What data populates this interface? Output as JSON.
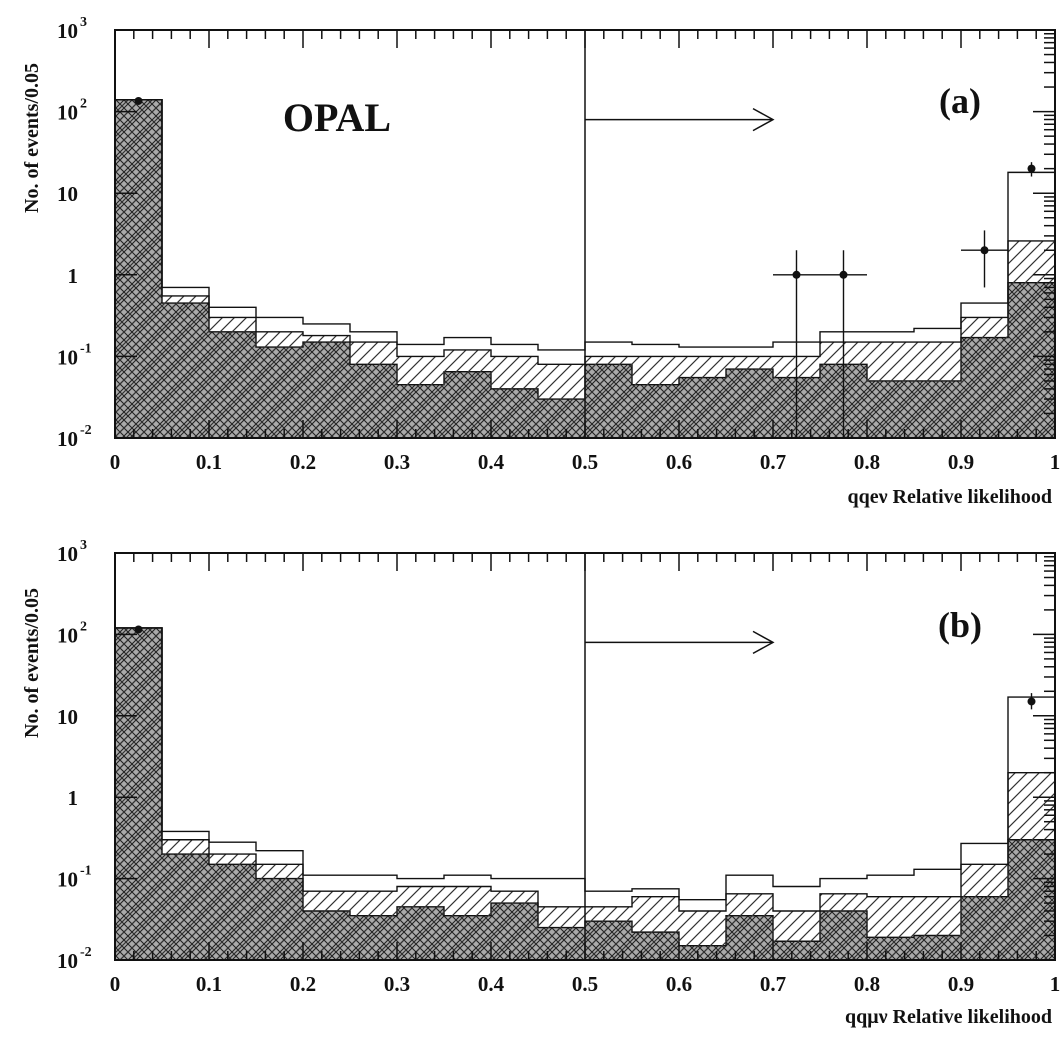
{
  "chart_data": [
    {
      "type": "histogram",
      "panel_label": "(a)",
      "experiment_label": "OPAL",
      "xlabel": "qqeν Relative likelihood",
      "ylabel": "No. of events/0.05",
      "xlim": [
        0,
        1
      ],
      "ylim": [
        0.01,
        1000
      ],
      "yscale": "log",
      "x_ticks": [
        "0",
        "0.1",
        "0.2",
        "0.3",
        "0.4",
        "0.5",
        "0.6",
        "0.7",
        "0.8",
        "0.9",
        "1"
      ],
      "y_ticks": [
        {
          "value": 0.01,
          "base": "10",
          "exp": "-2"
        },
        {
          "value": 0.1,
          "base": "10",
          "exp": "-1"
        },
        {
          "value": 1,
          "base": "1",
          "exp": ""
        },
        {
          "value": 10,
          "base": "10",
          "exp": ""
        },
        {
          "value": 100,
          "base": "10",
          "exp": "2"
        },
        {
          "value": 1000,
          "base": "10",
          "exp": "3"
        }
      ],
      "cut": {
        "x": 0.5,
        "arrow_to": 0.7,
        "arrow_y": 100
      },
      "bin_width": 0.05,
      "bin_edges_start": 0,
      "total": [
        140,
        0.7,
        0.4,
        0.3,
        0.25,
        0.2,
        0.14,
        0.17,
        0.14,
        0.12,
        0.15,
        0.14,
        0.13,
        0.13,
        0.15,
        0.2,
        0.2,
        0.22,
        0.45,
        18
      ],
      "hatched": [
        140,
        0.55,
        0.3,
        0.2,
        0.18,
        0.15,
        0.1,
        0.12,
        0.1,
        0.08,
        0.1,
        0.1,
        0.1,
        0.1,
        0.1,
        0.15,
        0.15,
        0.15,
        0.3,
        2.6
      ],
      "crosshatched": [
        140,
        0.45,
        0.2,
        0.13,
        0.15,
        0.08,
        0.045,
        0.065,
        0.04,
        0.03,
        0.08,
        0.045,
        0.055,
        0.07,
        0.055,
        0.08,
        0.05,
        0.05,
        0.17,
        0.8
      ],
      "data_points": [
        {
          "x": 0.025,
          "y": 135,
          "err_lo": 0,
          "err_hi": 0
        },
        {
          "x": 0.725,
          "y": 1,
          "err_lo": 1,
          "err_hi": 1,
          "xerr": 0.025
        },
        {
          "x": 0.775,
          "y": 1,
          "err_lo": 1,
          "err_hi": 1,
          "xerr": 0.025
        },
        {
          "x": 0.925,
          "y": 2,
          "err_lo": 1.3,
          "err_hi": 1.5,
          "xerr": 0.025
        },
        {
          "x": 0.975,
          "y": 20,
          "err_lo": 4,
          "err_hi": 4
        }
      ]
    },
    {
      "type": "histogram",
      "panel_label": "(b)",
      "experiment_label": "",
      "xlabel": "qqμν Relative likelihood",
      "ylabel": "No. of events/0.05",
      "xlim": [
        0,
        1
      ],
      "ylim": [
        0.01,
        1000
      ],
      "yscale": "log",
      "x_ticks": [
        "0",
        "0.1",
        "0.2",
        "0.3",
        "0.4",
        "0.5",
        "0.6",
        "0.7",
        "0.8",
        "0.9",
        "1"
      ],
      "y_ticks": [
        {
          "value": 0.01,
          "base": "10",
          "exp": "-2"
        },
        {
          "value": 0.1,
          "base": "10",
          "exp": "-1"
        },
        {
          "value": 1,
          "base": "1",
          "exp": ""
        },
        {
          "value": 10,
          "base": "10",
          "exp": ""
        },
        {
          "value": 100,
          "base": "10",
          "exp": "2"
        },
        {
          "value": 1000,
          "base": "10",
          "exp": "3"
        }
      ],
      "cut": {
        "x": 0.5,
        "arrow_to": 0.7,
        "arrow_y": 100
      },
      "bin_width": 0.05,
      "bin_edges_start": 0,
      "total": [
        120,
        0.38,
        0.28,
        0.22,
        0.11,
        0.11,
        0.1,
        0.11,
        0.1,
        0.1,
        0.07,
        0.075,
        0.055,
        0.11,
        0.08,
        0.1,
        0.11,
        0.13,
        0.27,
        17
      ],
      "hatched": [
        120,
        0.3,
        0.2,
        0.15,
        0.07,
        0.07,
        0.08,
        0.08,
        0.07,
        0.045,
        0.045,
        0.06,
        0.04,
        0.065,
        0.04,
        0.065,
        0.06,
        0.06,
        0.15,
        2
      ],
      "crosshatched": [
        120,
        0.2,
        0.15,
        0.1,
        0.04,
        0.035,
        0.045,
        0.035,
        0.05,
        0.025,
        0.03,
        0.022,
        0.015,
        0.035,
        0.017,
        0.04,
        0.019,
        0.02,
        0.06,
        0.3
      ],
      "data_points": [
        {
          "x": 0.025,
          "y": 115,
          "err_lo": 0,
          "err_hi": 0
        },
        {
          "x": 0.975,
          "y": 15,
          "err_lo": 3,
          "err_hi": 4
        }
      ]
    }
  ]
}
